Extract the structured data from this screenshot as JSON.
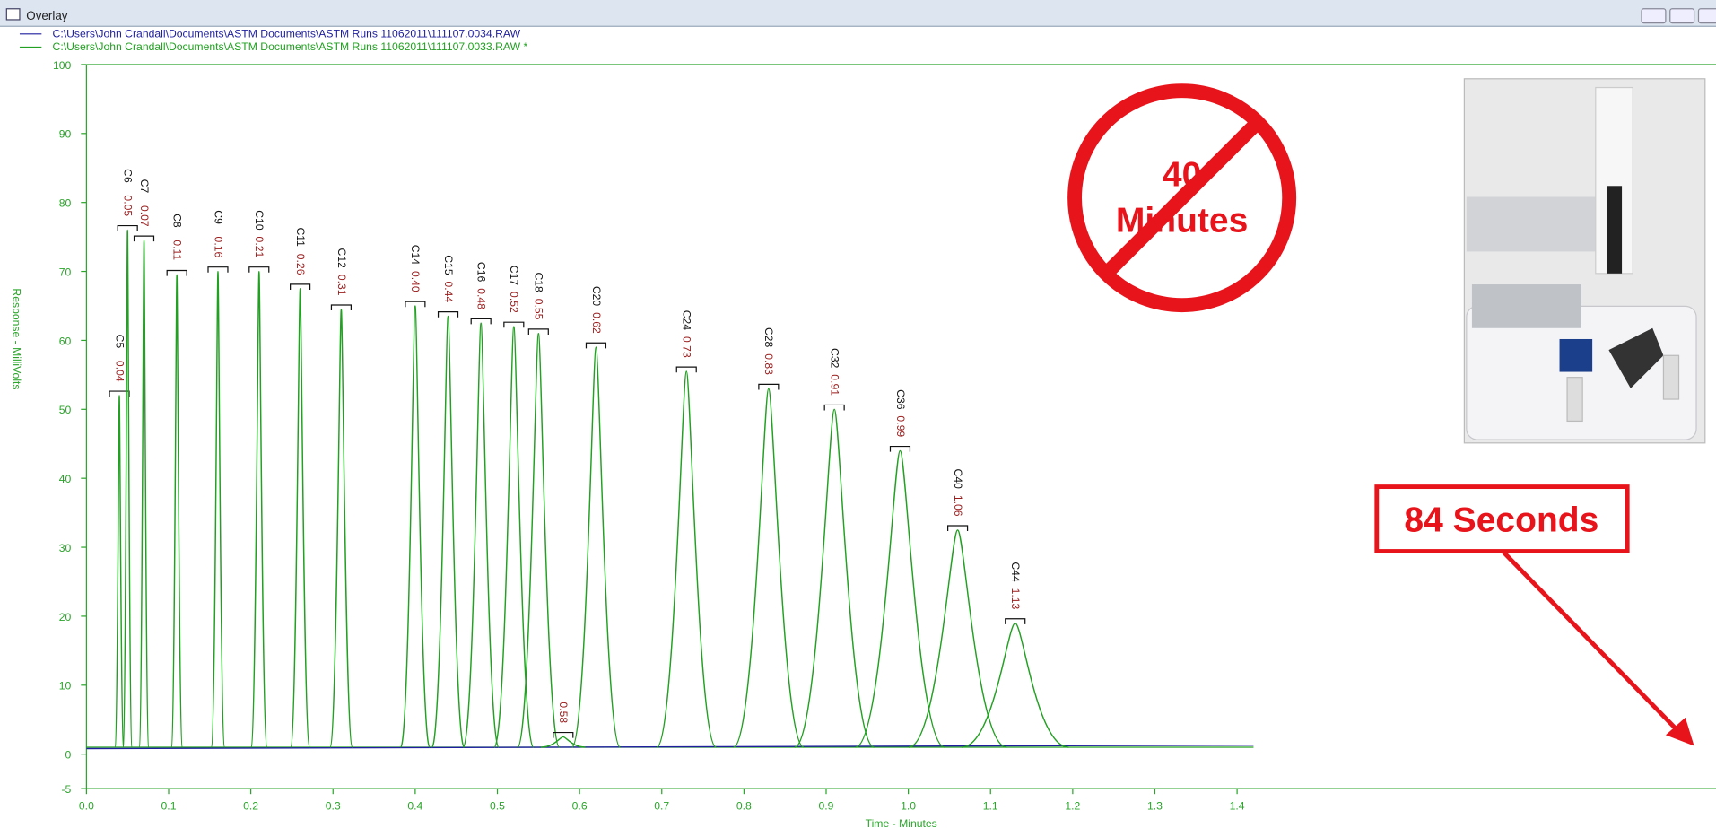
{
  "window": {
    "title": "Overlay"
  },
  "chart_data": {
    "type": "chromatogram",
    "xlabel": "Time - Minutes",
    "ylabel": "Response - MilliVolts",
    "xlim": [
      0,
      1.42
    ],
    "xticks": [
      {
        "value": 0,
        "label": "0.0"
      },
      0.1,
      0.2,
      0.3,
      0.4,
      0.5,
      0.6,
      0.7,
      0.8,
      0.9,
      {
        "value": 1,
        "label": "1.0"
      },
      1.1,
      1.2,
      1.3,
      1.4
    ],
    "ylim": [
      -5,
      100
    ],
    "yticks": [
      -5,
      0,
      10,
      20,
      30,
      40,
      50,
      60,
      70,
      80,
      90,
      100
    ],
    "baseline": 1,
    "series": [
      {
        "name": "C:\\Users\\John Crandall\\Documents\\ASTM Documents\\ASTM Runs 11062011\\111107.0034.RAW",
        "color": "#1f1f9e",
        "x": [
          0,
          1.42
        ],
        "values": [
          0.8,
          1.3
        ]
      },
      {
        "name": "C:\\Users\\John Crandall\\Documents\\ASTM Documents\\ASTM Runs 11062011\\111107.0033.RAW *",
        "color": "#22a022",
        "peak_names": [
          "C5",
          "C6",
          "C7",
          "C8",
          "C9",
          "C10",
          "C11",
          "C12",
          "C14",
          "C15",
          "C16",
          "C17",
          "C18",
          null,
          "C20",
          "C24",
          "C28",
          "C32",
          "C36",
          "C40",
          "C44"
        ],
        "x": [
          0.04,
          0.05,
          0.07,
          0.11,
          0.16,
          0.21,
          0.26,
          0.31,
          0.4,
          0.44,
          0.48,
          0.52,
          0.55,
          0.58,
          0.62,
          0.73,
          0.83,
          0.91,
          0.99,
          1.06,
          1.13
        ],
        "x_labels": [
          "0.04",
          "0.05",
          "0.07",
          "0.11",
          "0.16",
          "0.21",
          "0.26",
          "0.31",
          "0.40",
          "0.44",
          "0.48",
          "0.52",
          "0.55",
          "0.58",
          "0.62",
          "0.73",
          "0.83",
          "0.91",
          "0.99",
          "1.06",
          "1.13"
        ],
        "values": [
          52,
          76,
          74.5,
          69.5,
          70,
          70,
          67.5,
          64.5,
          65,
          63.5,
          62.5,
          62,
          61,
          2.5,
          59,
          55.5,
          53,
          50,
          44,
          32.5,
          19
        ]
      }
    ],
    "annotations": {
      "crossed_out": [
        "40",
        "Minutes"
      ],
      "callout": "84 Seconds"
    }
  }
}
